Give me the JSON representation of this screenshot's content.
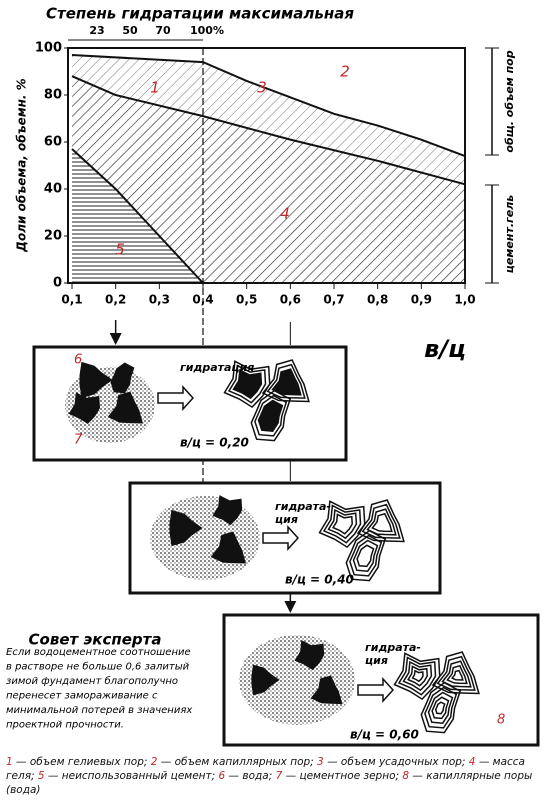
{
  "chart_data": {
    "type": "line",
    "title": "Степень гидратации максимальная",
    "top_ticks": [
      23,
      50,
      70,
      {
        "value": 100,
        "label": "100%"
      }
    ],
    "y_label": "Доли объема, объемн. %",
    "x_label": "в/ц",
    "ylim": [
      0,
      100
    ],
    "yticks": [
      0,
      20,
      40,
      60,
      80,
      100
    ],
    "xlim": [
      0.1,
      1.0
    ],
    "xticks": [
      {
        "value": 0.1,
        "label": "0,1"
      },
      {
        "value": 0.2,
        "label": "0,2"
      },
      {
        "value": 0.3,
        "label": "0,3"
      },
      {
        "value": 0.4,
        "label": "0,4"
      },
      {
        "value": 0.5,
        "label": "0,5"
      },
      {
        "value": 0.6,
        "label": "0,6"
      },
      {
        "value": 0.7,
        "label": "0,7"
      },
      {
        "value": 0.8,
        "label": "0,8"
      },
      {
        "value": 0.9,
        "label": "0,9"
      },
      {
        "value": 1.0,
        "label": "1,0"
      }
    ],
    "series": [
      {
        "color": "#111111",
        "x": [
          0.1,
          0.4,
          0.5,
          0.6,
          0.7,
          0.8,
          0.9,
          1.0
        ],
        "values": [
          97,
          94,
          86,
          79,
          72,
          67,
          61,
          54
        ]
      },
      {
        "color": "#111111",
        "x": [
          0.1,
          0.2,
          0.4,
          0.6,
          0.8,
          1.0
        ],
        "values": [
          88,
          80,
          71,
          61,
          52,
          42
        ]
      },
      {
        "color": "#111111",
        "x": [
          0.1,
          0.2,
          0.3,
          0.4
        ],
        "values": [
          57,
          40,
          20,
          0
        ]
      }
    ],
    "region_labels": [
      "1",
      "2",
      "3",
      "4",
      "5"
    ],
    "right_labels": [
      "общ. объем пор",
      "цемент.гель"
    ]
  },
  "panels": [
    {
      "label": [
        "гидратация"
      ],
      "ratio": "в/ц = 0,20",
      "marks": [
        "6",
        "7"
      ]
    },
    {
      "label": [
        "гидрата-",
        "ция"
      ],
      "ratio": "в/ц = 0,40",
      "marks": []
    },
    {
      "label": [
        "гидрата-",
        "ция"
      ],
      "ratio": "в/ц = 0,60",
      "marks": [
        "8"
      ]
    }
  ],
  "expert": {
    "title": "Совет эксперта",
    "lines": [
      "Если водоцементное соотношение",
      "в растворе не больше 0,6 залитый",
      "зимой фундамент благополучно",
      "перенесет замораживание с",
      "минимальной потерей в значениях",
      "проектной прочности."
    ]
  },
  "legend": [
    {
      "num": "1",
      "text": " — объем гелиевых пор; "
    },
    {
      "num": "2",
      "text": " — объем капиллярных пор; "
    },
    {
      "num": "3",
      "text": " — объем усадочных пор; "
    },
    {
      "num": "4",
      "text": " — масса геля; "
    },
    {
      "num": "5",
      "text": " — неиспользованный цемент; "
    },
    {
      "num": "6",
      "text": " — вода; "
    },
    {
      "num": "7",
      "text": " — цементное зерно; "
    },
    {
      "num": "8",
      "text": " — капиллярные поры (вода)"
    }
  ]
}
